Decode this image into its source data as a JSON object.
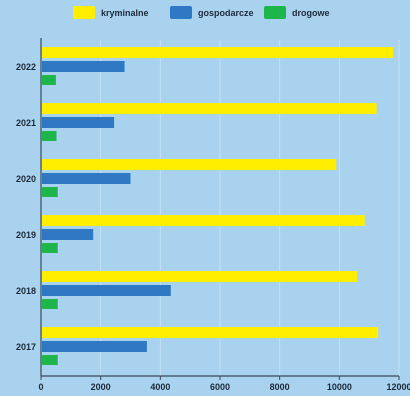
{
  "chart_data": {
    "type": "bar",
    "orientation": "horizontal",
    "categories": [
      "2022",
      "2021",
      "2020",
      "2019",
      "2018",
      "2017"
    ],
    "series": [
      {
        "name": "kryminalne",
        "color": "#ffee00",
        "values": [
          11800,
          11250,
          9900,
          10850,
          10600,
          11300
        ]
      },
      {
        "name": "gospodarcze",
        "color": "#2e78c4",
        "values": [
          2800,
          2450,
          3000,
          1750,
          4350,
          3550
        ]
      },
      {
        "name": "drogowe",
        "color": "#1db64a",
        "values": [
          500,
          520,
          560,
          560,
          560,
          560
        ]
      }
    ],
    "xlim": [
      0,
      12000
    ],
    "xticks": [
      "0",
      "2000",
      "4000",
      "6000",
      "8000",
      "10000",
      "12000"
    ],
    "grid": true,
    "legend_position": "top"
  }
}
